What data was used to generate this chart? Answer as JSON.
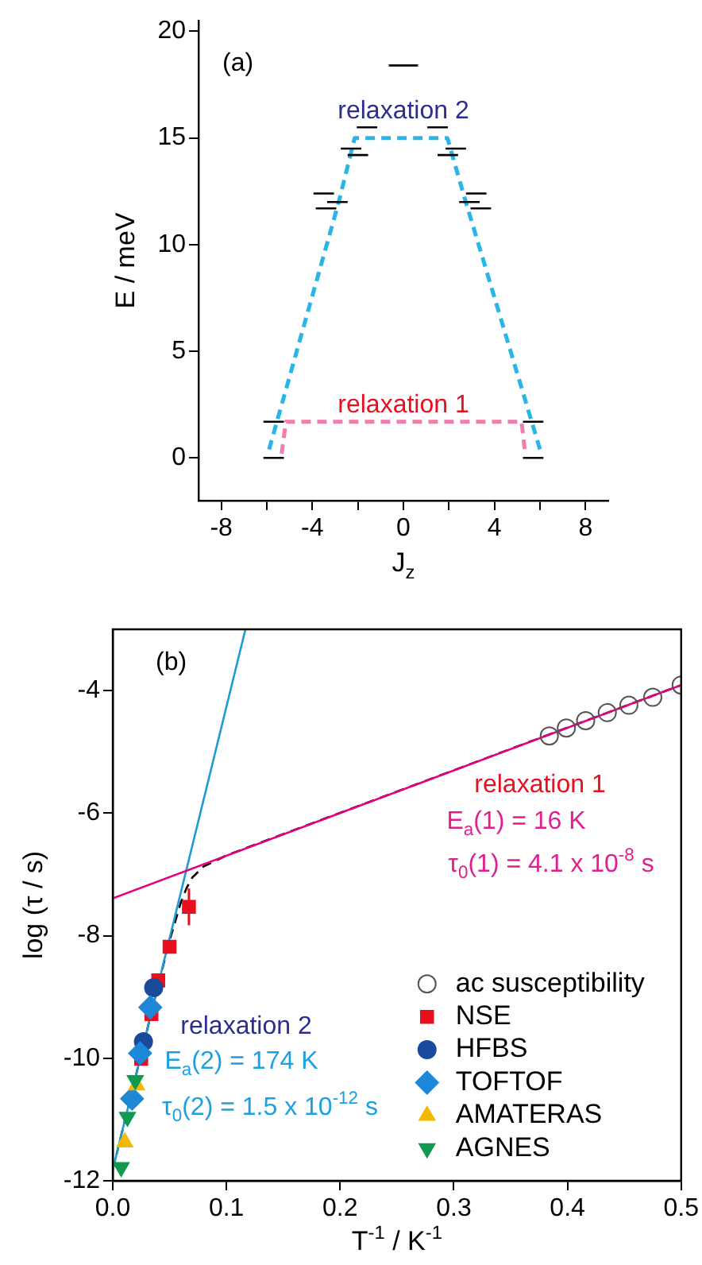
{
  "chart_data": [
    {
      "type": "line",
      "xlabel": "J$_{z}$",
      "ylabel": "E / meV",
      "annotations": [
        "(a)",
        "relaxation 2",
        "relaxation 1"
      ],
      "xlim": [
        -9,
        9
      ],
      "ylim": [
        -2,
        20.5
      ],
      "grid": false,
      "legend": false,
      "xticks": [
        -8,
        {
          "value": -6,
          "label": null
        },
        -4,
        {
          "value": -2,
          "label": null
        },
        0,
        {
          "value": 2,
          "label": null
        },
        4,
        {
          "value": 6,
          "label": null
        },
        8
      ],
      "yticks": [
        0,
        5,
        10,
        15,
        20
      ],
      "series": [
        {
          "color": "#000000",
          "line_style": "solid",
          "marker": "none",
          "x": [
            -6.15,
            -5.25,
            null,
            5.25,
            6.15
          ],
          "values": [
            1.7,
            1.7,
            null,
            1.7,
            1.7
          ]
        },
        {
          "color": "#000000",
          "line_style": "solid",
          "marker": "none",
          "x": [
            -6.15,
            -5.25,
            null,
            -3.95,
            -3.05,
            null,
            -3.85,
            -2.95,
            null,
            -3.35,
            -2.45,
            null,
            -2.75,
            -1.85,
            null,
            -2.45,
            -1.55,
            null,
            -2.05,
            -1.15,
            null,
            -0.64,
            0.64,
            null,
            1.05,
            1.95,
            null,
            1.5,
            2.4,
            null,
            1.85,
            2.75,
            null,
            2.45,
            3.35,
            null,
            2.75,
            3.65,
            null,
            2.95,
            3.85,
            null,
            5.25,
            6.15
          ],
          "values": [
            0,
            0,
            null,
            12.4,
            12.4,
            null,
            11.7,
            11.7,
            null,
            12.0,
            12.0,
            null,
            14.5,
            14.5,
            null,
            14.2,
            14.2,
            null,
            15.5,
            15.5,
            null,
            18.4,
            18.4,
            null,
            15.5,
            15.5,
            null,
            14.2,
            14.2,
            null,
            14.5,
            14.5,
            null,
            12.0,
            12.0,
            null,
            12.4,
            12.4,
            null,
            11.7,
            11.7,
            null,
            0,
            0
          ]
        },
        {
          "color": "#29b5e8",
          "line_style": "dashed",
          "marker": "none",
          "x": [
            -5.9,
            -2.84,
            -2.14,
            1.93,
            2.63,
            6.0
          ],
          "values": [
            0.4,
            12.0,
            15,
            15,
            12.4,
            0.4
          ]
        },
        {
          "color": "#f07cb0",
          "line_style": "dashed",
          "marker": "none",
          "x": [
            -5.35,
            -5.16,
            5.19,
            5.35
          ],
          "values": [
            0.2,
            1.7,
            1.7,
            0.2
          ]
        }
      ]
    },
    {
      "type": "scatter",
      "xlabel": "T$^{-1}$ / K$^{-1}$",
      "ylabel": "log (τ / s)",
      "annotations": [
        "(b)",
        "relaxation 1",
        "E$_{a}$(1) = 16 K",
        "τ$_{0}$(1) = 4.1 x 10$^{-8}$ s",
        "relaxation 2",
        "E$_{a}$(2) = 174 K",
        "τ$_{0}$(2) = 1.5 x 10$^{-12}$ s"
      ],
      "xlim": [
        0,
        0.5
      ],
      "ylim": [
        -12,
        -3
      ],
      "grid": false,
      "legend": "bottom right",
      "xticks": [
        {
          "value": 0,
          "label": "0.0"
        },
        0.1,
        0.2,
        0.3,
        0.4,
        0.5
      ],
      "yticks": [
        -12,
        -10,
        -8,
        -6,
        -4
      ],
      "series": [
        {
          "name": "ac susceptibility",
          "color": "#555555",
          "marker": "circle-open",
          "x": [
            0.384,
            0.399,
            0.416,
            0.435,
            0.454,
            0.475,
            0.5
          ],
          "values": [
            -4.74,
            -4.61,
            -4.49,
            -4.36,
            -4.24,
            -4.11,
            -3.91
          ]
        },
        {
          "name": "NSE",
          "color": "#e8101f",
          "marker": "square",
          "x": [
            0.067,
            0.05,
            0.04,
            0.034,
            0.025
          ],
          "values": [
            -7.53,
            -8.18,
            -8.73,
            -9.28,
            -10.01
          ],
          "errors": [
            0.3,
            null,
            null,
            null,
            null
          ]
        },
        {
          "name": "HFBS",
          "color": "#1a4a9c",
          "marker": "circle",
          "x": [
            0.036,
            0.027
          ],
          "values": [
            -8.85,
            -9.73
          ]
        },
        {
          "name": "TOFTOF",
          "color": "#1e88d8",
          "marker": "diamond",
          "x": [
            0.033,
            0.024,
            0.017
          ],
          "values": [
            -9.17,
            -9.92,
            -10.66
          ]
        },
        {
          "name": "AMATERAS",
          "color": "#f5b800",
          "marker": "triangle",
          "x": [
            0.021,
            0.0106
          ],
          "values": [
            -10.44,
            -11.37
          ]
        },
        {
          "name": "AGNES",
          "color": "#109a50",
          "marker": "triangle-down",
          "x": [
            0.0198,
            0.0129,
            0.0074
          ],
          "values": [
            -10.36,
            -10.96,
            -11.78
          ]
        },
        {
          "type": "line",
          "color": "#e6007e",
          "line_style": "solid",
          "marker": "none",
          "x": [
            0,
            0.5
          ],
          "values": [
            -7.39,
            -3.91
          ]
        },
        {
          "type": "line",
          "color": "#1e9ad6",
          "line_style": "solid",
          "marker": "none",
          "x": [
            0,
            0.1167
          ],
          "values": [
            -11.82,
            -3
          ]
        },
        {
          "type": "line",
          "color": "#000000",
          "line_style": "dashed",
          "marker": "none",
          "x": [
            0,
            0.04,
            0.05,
            0.06,
            0.065,
            0.07,
            0.08,
            0.1,
            0.5
          ],
          "values": [
            -11.82,
            -8.8,
            -8.08,
            -7.45,
            -7.22,
            -7.05,
            -6.87,
            -6.69,
            -3.91
          ]
        }
      ]
    }
  ]
}
